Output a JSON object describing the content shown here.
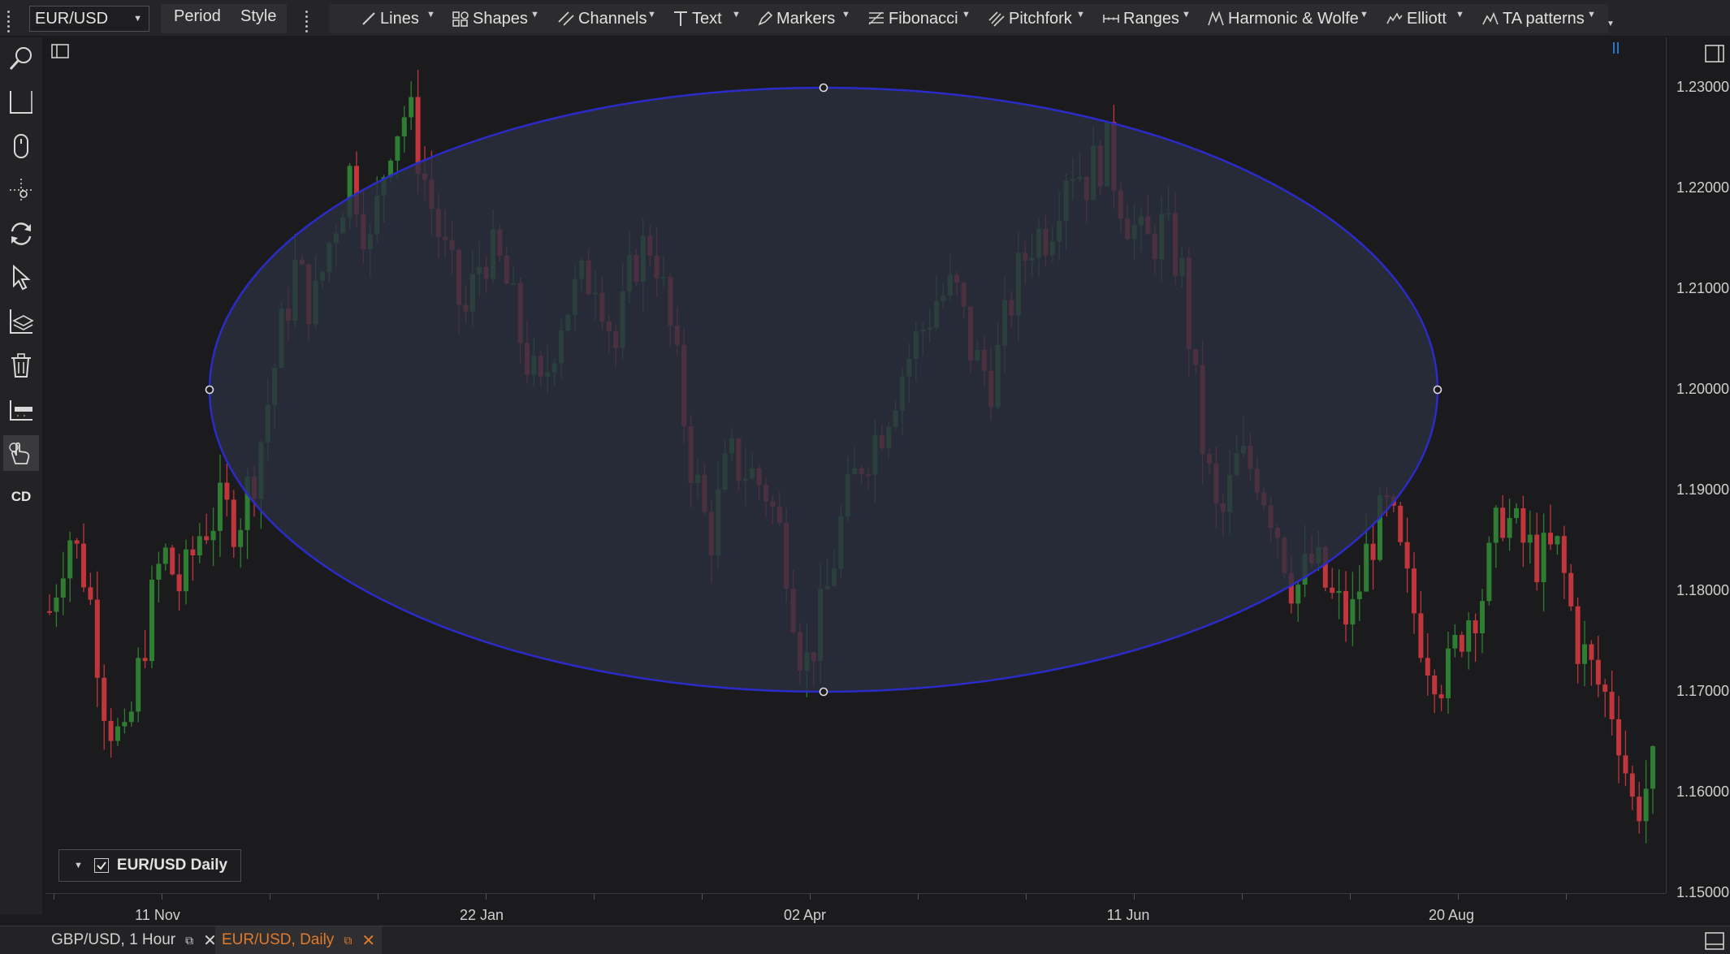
{
  "toolbar": {
    "symbol": "EUR/USD",
    "period_label": "Period",
    "style_label": "Style",
    "groups": [
      {
        "label": "Lines",
        "icon": "lines-icon"
      },
      {
        "label": "Shapes",
        "icon": "shapes-icon"
      },
      {
        "label": "Channels",
        "icon": "channels-icon"
      },
      {
        "label": "Text",
        "icon": "text-icon"
      },
      {
        "label": "Markers",
        "icon": "markers-icon"
      },
      {
        "label": "Fibonacci",
        "icon": "fibonacci-icon"
      },
      {
        "label": "Pitchfork",
        "icon": "pitchfork-icon"
      },
      {
        "label": "Ranges",
        "icon": "ranges-icon"
      },
      {
        "label": "Harmonic & Wolfe",
        "icon": "harmonic-icon"
      },
      {
        "label": "Elliott",
        "icon": "elliott-icon"
      },
      {
        "label": "TA patterns",
        "icon": "ta-patterns-icon"
      }
    ]
  },
  "left_tools": [
    {
      "name": "zoom-tool",
      "icon": "magnifier-icon"
    },
    {
      "name": "crosshair-tool",
      "icon": "crosshair-icon"
    },
    {
      "name": "mouse-tool",
      "icon": "mouse-icon"
    },
    {
      "name": "pan-tool",
      "icon": "pan-icon"
    },
    {
      "name": "refresh-tool",
      "icon": "refresh-icon"
    },
    {
      "name": "select-tool",
      "icon": "cursor-icon"
    },
    {
      "name": "layers-tool",
      "icon": "layers-icon"
    },
    {
      "name": "delete-tool",
      "icon": "trash-icon"
    },
    {
      "name": "measure-tool",
      "icon": "measure-icon"
    },
    {
      "name": "touch-tool",
      "icon": "hand-icon"
    },
    {
      "name": "cd-tool",
      "label": "CD"
    }
  ],
  "chart": {
    "legend_label": "EUR/USD Daily",
    "legend_checked": true,
    "price_labels": [
      "1.23000",
      "1.22000",
      "1.21000",
      "1.20000",
      "1.19000",
      "1.18000",
      "1.17000",
      "1.16000",
      "1.15000"
    ],
    "time_labels": [
      "11 Nov",
      "22 Jan",
      "02 Apr",
      "11 Jun",
      "20 Aug"
    ],
    "colors": {
      "up": "#2f7d32",
      "down": "#c0363c",
      "ellipse_stroke": "#2b2bc8",
      "ellipse_fill": "#2a3040"
    }
  },
  "chart_data": {
    "type": "candlestick",
    "symbol": "EUR/USD",
    "timeframe": "Daily",
    "ylim": [
      1.15,
      1.235
    ],
    "x_tick_labels": [
      "11 Nov",
      "22 Jan",
      "02 Apr",
      "11 Jun",
      "20 Aug"
    ],
    "close_path": [
      1.178,
      1.186,
      1.181,
      1.168,
      1.164,
      1.175,
      1.184,
      1.18,
      1.186,
      1.188,
      1.187,
      1.193,
      1.203,
      1.212,
      1.208,
      1.216,
      1.222,
      1.214,
      1.225,
      1.228,
      1.22,
      1.213,
      1.207,
      1.214,
      1.212,
      1.205,
      1.199,
      1.207,
      1.21,
      1.212,
      1.204,
      1.213,
      1.215,
      1.205,
      1.193,
      1.185,
      1.193,
      1.192,
      1.19,
      1.184,
      1.172,
      1.178,
      1.187,
      1.193,
      1.196,
      1.201,
      1.205,
      1.209,
      1.21,
      1.203,
      1.201,
      1.209,
      1.215,
      1.216,
      1.223,
      1.221,
      1.224,
      1.218,
      1.214,
      1.216,
      1.212,
      1.196,
      1.186,
      1.193,
      1.192,
      1.187,
      1.18,
      1.183,
      1.179,
      1.177,
      1.185,
      1.188,
      1.18,
      1.174,
      1.171,
      1.177,
      1.18,
      1.188,
      1.185,
      1.183,
      1.184,
      1.175,
      1.171,
      1.168,
      1.158,
      1.162
    ]
  },
  "shape": {
    "type": "ellipse",
    "center_date": "02 Apr",
    "center_price": 1.2,
    "top_price": 1.23,
    "bottom_price": 1.17
  },
  "tabs": [
    {
      "label": "GBP/USD, 1 Hour",
      "active": false
    },
    {
      "label": "EUR/USD, Daily",
      "active": true
    }
  ]
}
